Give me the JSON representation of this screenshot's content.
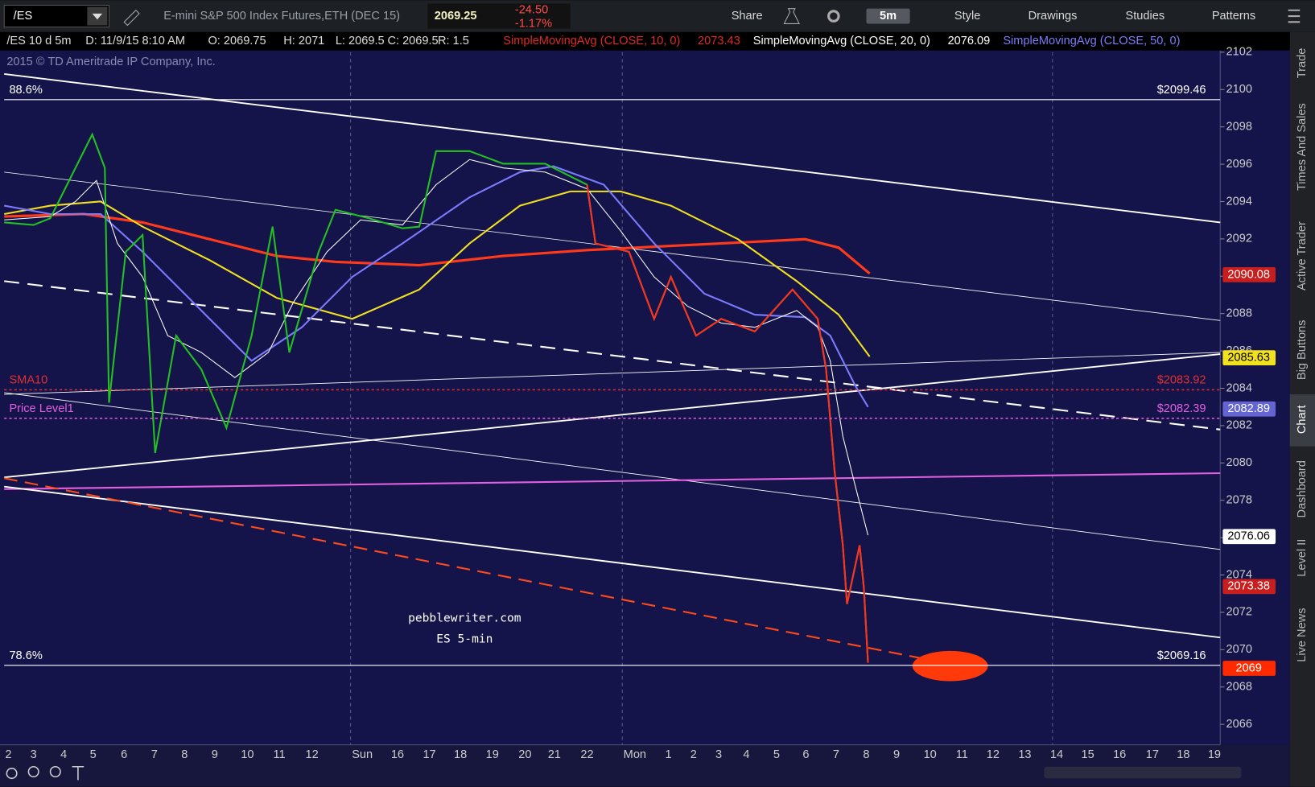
{
  "toolbar": {
    "symbol": "/ES",
    "description": "E-mini S&P 500 Index Futures,ETH (DEC 15)",
    "last": "2069.25",
    "change": "-24.50",
    "change_pct": "-1.17%",
    "timeframe": "5m",
    "buttons": [
      "Share",
      "Style",
      "Drawings",
      "Studies",
      "Patterns"
    ]
  },
  "info_bar": {
    "items": [
      "/ES 10 d 5m",
      "D: 11/9/15 8:10 AM",
      "O: 2069.75",
      "H: 2071",
      "L: 2069.5",
      "C: 2069.5",
      "R: 1.5"
    ],
    "studies": [
      {
        "label": "SimpleMovingAvg (CLOSE, 10, 0)",
        "value": "2073.43",
        "color": "#e02828"
      },
      {
        "label": "SimpleMovingAvg (CLOSE, 20, 0)",
        "value": "2076.09",
        "color": "#ffffff"
      },
      {
        "label": "SimpleMovingAvg (CLOSE, 50, 0)",
        "color": "#7b7bff"
      }
    ]
  },
  "copyright": "2015 © TD Ameritrade IP Company, Inc.",
  "price_axis": {
    "ylim": [
      2064.9,
      2102.0
    ],
    "yticks": [
      2066,
      2068,
      2070,
      2072,
      2074,
      2076,
      2078,
      2080,
      2082,
      2084,
      2086,
      2088,
      2090,
      2092,
      2094,
      2096,
      2098,
      2100,
      2102
    ]
  },
  "levels": [
    {
      "left": "88.6%",
      "right": "$2099.46",
      "value": 2099.46,
      "color": "#ffffff",
      "dotted": false
    },
    {
      "left": "SMA10",
      "right": "$2083.92",
      "value": 2083.92,
      "color": "#e03030",
      "dotted": true
    },
    {
      "left": "Price Level1",
      "right": "$2082.39",
      "value": 2082.39,
      "color": "#e060e0",
      "dotted": true
    },
    {
      "left": "78.6%",
      "right": "$2069.16",
      "value": 2069.16,
      "color": "#ffffff",
      "dotted": false
    }
  ],
  "price_tags": [
    {
      "value": 2090.08,
      "color": "#c81e1e",
      "text_color": "#ffffff"
    },
    {
      "value": 2085.63,
      "color": "#f2e21e",
      "text_color": "#000000"
    },
    {
      "value": 2082.89,
      "color": "#6464d2",
      "text_color": "#ffffff"
    },
    {
      "value": 2076.06,
      "color": "#ffffff",
      "text_color": "#000000"
    },
    {
      "value": 2073.38,
      "color": "#c81e1e",
      "text_color": "#ffffff"
    },
    {
      "value": 2069,
      "color": "#ff2a00",
      "text_color": "#ffffff"
    }
  ],
  "watermark": [
    "pebblewriter.com",
    "ES 5-min"
  ],
  "time_axis": [
    "2",
    "3",
    "4",
    "5",
    "6",
    "7",
    "8",
    "9",
    "10",
    "11",
    "12",
    "Sun",
    "16",
    "17",
    "18",
    "19",
    "20",
    "21",
    "22",
    "Mon",
    "1",
    "2",
    "3",
    "4",
    "5",
    "6",
    "7",
    "8",
    "9",
    "10",
    "11",
    "12",
    "13",
    "14",
    "15",
    "16",
    "17",
    "18",
    "19"
  ],
  "sidebar": [
    "Trade",
    "Times And Sales",
    "Active Trader",
    "Big Buttons",
    "Chart",
    "Dashboard",
    "Level II",
    "Live News"
  ]
}
